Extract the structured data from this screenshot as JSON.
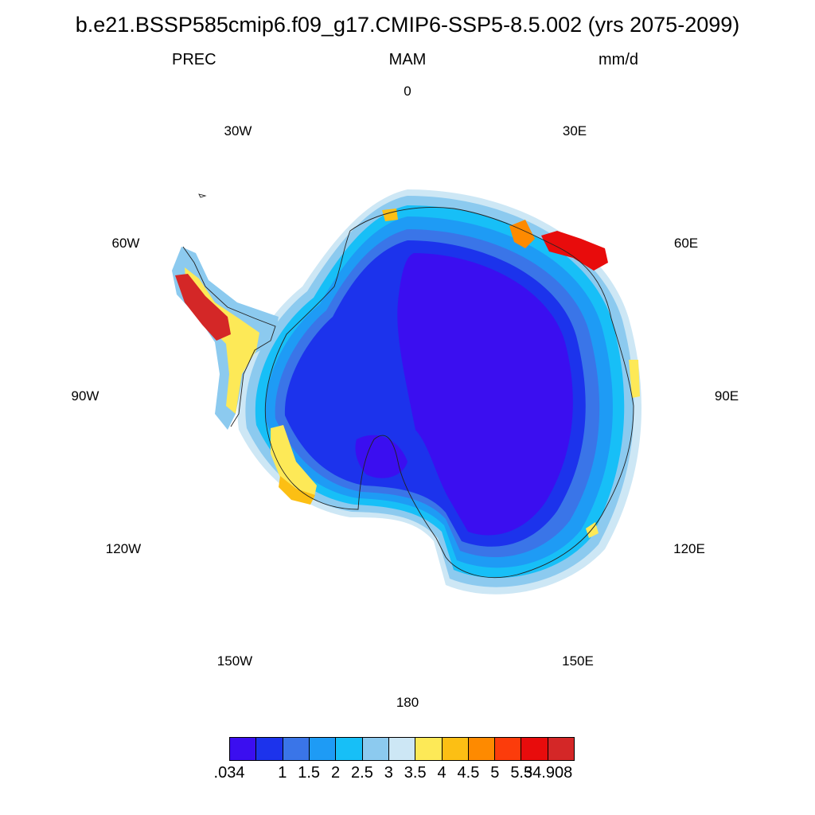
{
  "title": "b.e21.BSSP585cmip6.f09_g17.CMIP6-SSP5-8.5.002 (yrs 2075-2099)",
  "variable": "PREC",
  "season": "MAM",
  "units": "mm/d",
  "longitude_labels": [
    "0",
    "30E",
    "60E",
    "90E",
    "120E",
    "150E",
    "180",
    "150W",
    "120W",
    "90W",
    "60W",
    "30W"
  ],
  "colorbar": {
    "colors": [
      "#3b0ef0",
      "#1c33ec",
      "#3a75e8",
      "#1e9bf5",
      "#17bff7",
      "#8ccaef",
      "#cde7f5",
      "#fde957",
      "#fcbf14",
      "#fe8a00",
      "#fc3c0b",
      "#e80c0c",
      "#d42727"
    ],
    "labels": [
      ".034",
      "1",
      "1.5",
      "2",
      "2.5",
      "3",
      "3.5",
      "4",
      "4.5",
      "5",
      "5.5",
      "34.908"
    ]
  }
}
